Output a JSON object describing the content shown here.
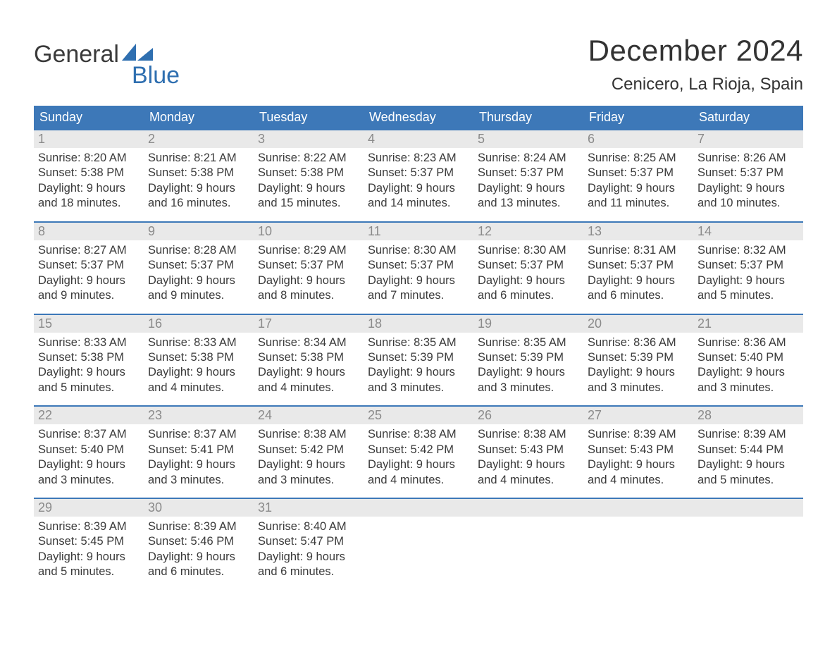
{
  "brand": {
    "word1": "General",
    "word2": "Blue",
    "sail_color": "#2f6fb0"
  },
  "title": "December 2024",
  "location": "Cenicero, La Rioja, Spain",
  "colors": {
    "header_bg": "#3d78b8",
    "header_text": "#ffffff",
    "daynum_bg": "#e9e9e9",
    "daynum_text": "#8a8a8a",
    "week_border": "#3d78b8",
    "body_text": "#3a3a3a",
    "page_bg": "#ffffff"
  },
  "typography": {
    "title_fontsize": 42,
    "location_fontsize": 24,
    "dow_fontsize": 18,
    "daynum_fontsize": 18,
    "body_fontsize": 16.5
  },
  "days_of_week": [
    "Sunday",
    "Monday",
    "Tuesday",
    "Wednesday",
    "Thursday",
    "Friday",
    "Saturday"
  ],
  "weeks": [
    [
      {
        "n": "1",
        "sunrise": "8:20 AM",
        "sunset": "5:38 PM",
        "daylight1": "Daylight: 9 hours",
        "daylight2": "and 18 minutes."
      },
      {
        "n": "2",
        "sunrise": "8:21 AM",
        "sunset": "5:38 PM",
        "daylight1": "Daylight: 9 hours",
        "daylight2": "and 16 minutes."
      },
      {
        "n": "3",
        "sunrise": "8:22 AM",
        "sunset": "5:38 PM",
        "daylight1": "Daylight: 9 hours",
        "daylight2": "and 15 minutes."
      },
      {
        "n": "4",
        "sunrise": "8:23 AM",
        "sunset": "5:37 PM",
        "daylight1": "Daylight: 9 hours",
        "daylight2": "and 14 minutes."
      },
      {
        "n": "5",
        "sunrise": "8:24 AM",
        "sunset": "5:37 PM",
        "daylight1": "Daylight: 9 hours",
        "daylight2": "and 13 minutes."
      },
      {
        "n": "6",
        "sunrise": "8:25 AM",
        "sunset": "5:37 PM",
        "daylight1": "Daylight: 9 hours",
        "daylight2": "and 11 minutes."
      },
      {
        "n": "7",
        "sunrise": "8:26 AM",
        "sunset": "5:37 PM",
        "daylight1": "Daylight: 9 hours",
        "daylight2": "and 10 minutes."
      }
    ],
    [
      {
        "n": "8",
        "sunrise": "8:27 AM",
        "sunset": "5:37 PM",
        "daylight1": "Daylight: 9 hours",
        "daylight2": "and 9 minutes."
      },
      {
        "n": "9",
        "sunrise": "8:28 AM",
        "sunset": "5:37 PM",
        "daylight1": "Daylight: 9 hours",
        "daylight2": "and 9 minutes."
      },
      {
        "n": "10",
        "sunrise": "8:29 AM",
        "sunset": "5:37 PM",
        "daylight1": "Daylight: 9 hours",
        "daylight2": "and 8 minutes."
      },
      {
        "n": "11",
        "sunrise": "8:30 AM",
        "sunset": "5:37 PM",
        "daylight1": "Daylight: 9 hours",
        "daylight2": "and 7 minutes."
      },
      {
        "n": "12",
        "sunrise": "8:30 AM",
        "sunset": "5:37 PM",
        "daylight1": "Daylight: 9 hours",
        "daylight2": "and 6 minutes."
      },
      {
        "n": "13",
        "sunrise": "8:31 AM",
        "sunset": "5:37 PM",
        "daylight1": "Daylight: 9 hours",
        "daylight2": "and 6 minutes."
      },
      {
        "n": "14",
        "sunrise": "8:32 AM",
        "sunset": "5:37 PM",
        "daylight1": "Daylight: 9 hours",
        "daylight2": "and 5 minutes."
      }
    ],
    [
      {
        "n": "15",
        "sunrise": "8:33 AM",
        "sunset": "5:38 PM",
        "daylight1": "Daylight: 9 hours",
        "daylight2": "and 5 minutes."
      },
      {
        "n": "16",
        "sunrise": "8:33 AM",
        "sunset": "5:38 PM",
        "daylight1": "Daylight: 9 hours",
        "daylight2": "and 4 minutes."
      },
      {
        "n": "17",
        "sunrise": "8:34 AM",
        "sunset": "5:38 PM",
        "daylight1": "Daylight: 9 hours",
        "daylight2": "and 4 minutes."
      },
      {
        "n": "18",
        "sunrise": "8:35 AM",
        "sunset": "5:39 PM",
        "daylight1": "Daylight: 9 hours",
        "daylight2": "and 3 minutes."
      },
      {
        "n": "19",
        "sunrise": "8:35 AM",
        "sunset": "5:39 PM",
        "daylight1": "Daylight: 9 hours",
        "daylight2": "and 3 minutes."
      },
      {
        "n": "20",
        "sunrise": "8:36 AM",
        "sunset": "5:39 PM",
        "daylight1": "Daylight: 9 hours",
        "daylight2": "and 3 minutes."
      },
      {
        "n": "21",
        "sunrise": "8:36 AM",
        "sunset": "5:40 PM",
        "daylight1": "Daylight: 9 hours",
        "daylight2": "and 3 minutes."
      }
    ],
    [
      {
        "n": "22",
        "sunrise": "8:37 AM",
        "sunset": "5:40 PM",
        "daylight1": "Daylight: 9 hours",
        "daylight2": "and 3 minutes."
      },
      {
        "n": "23",
        "sunrise": "8:37 AM",
        "sunset": "5:41 PM",
        "daylight1": "Daylight: 9 hours",
        "daylight2": "and 3 minutes."
      },
      {
        "n": "24",
        "sunrise": "8:38 AM",
        "sunset": "5:42 PM",
        "daylight1": "Daylight: 9 hours",
        "daylight2": "and 3 minutes."
      },
      {
        "n": "25",
        "sunrise": "8:38 AM",
        "sunset": "5:42 PM",
        "daylight1": "Daylight: 9 hours",
        "daylight2": "and 4 minutes."
      },
      {
        "n": "26",
        "sunrise": "8:38 AM",
        "sunset": "5:43 PM",
        "daylight1": "Daylight: 9 hours",
        "daylight2": "and 4 minutes."
      },
      {
        "n": "27",
        "sunrise": "8:39 AM",
        "sunset": "5:43 PM",
        "daylight1": "Daylight: 9 hours",
        "daylight2": "and 4 minutes."
      },
      {
        "n": "28",
        "sunrise": "8:39 AM",
        "sunset": "5:44 PM",
        "daylight1": "Daylight: 9 hours",
        "daylight2": "and 5 minutes."
      }
    ],
    [
      {
        "n": "29",
        "sunrise": "8:39 AM",
        "sunset": "5:45 PM",
        "daylight1": "Daylight: 9 hours",
        "daylight2": "and 5 minutes."
      },
      {
        "n": "30",
        "sunrise": "8:39 AM",
        "sunset": "5:46 PM",
        "daylight1": "Daylight: 9 hours",
        "daylight2": "and 6 minutes."
      },
      {
        "n": "31",
        "sunrise": "8:40 AM",
        "sunset": "5:47 PM",
        "daylight1": "Daylight: 9 hours",
        "daylight2": "and 6 minutes."
      },
      null,
      null,
      null,
      null
    ]
  ],
  "labels": {
    "sunrise": "Sunrise: ",
    "sunset": "Sunset: "
  }
}
